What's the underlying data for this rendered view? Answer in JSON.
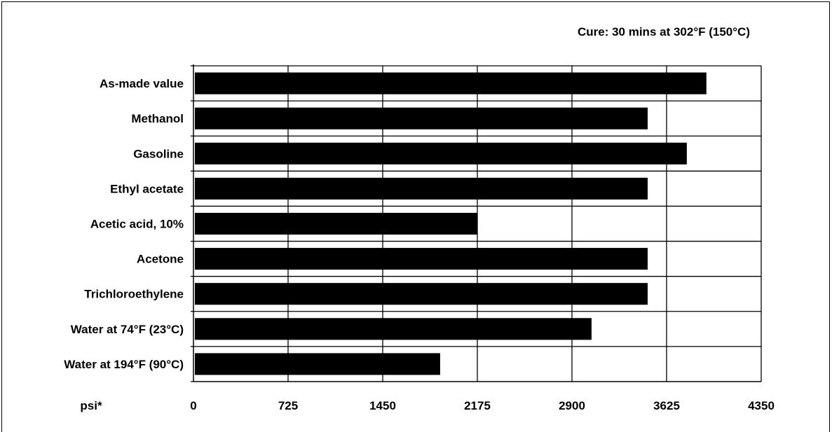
{
  "chart_data": {
    "type": "bar",
    "orientation": "horizontal",
    "annotation": "Cure: 30 mins at 302°F (150°C)",
    "xlabel": "psi*",
    "categories": [
      "As-made value",
      "Methanol",
      "Gasoline",
      "Ethyl acetate",
      "Acetic acid, 10%",
      "Acetone",
      "Trichloroethylene",
      "Water at 74°F (23°C)",
      "Water at 194°F (90°C)"
    ],
    "values": [
      3930,
      3480,
      3780,
      3480,
      2175,
      3480,
      3480,
      3050,
      1890
    ],
    "xlim": [
      0,
      4350
    ],
    "xticks": [
      "0",
      "725",
      "1450",
      "2175",
      "2900",
      "3625",
      "4350"
    ],
    "grid": true,
    "bar_color": "#000000"
  }
}
